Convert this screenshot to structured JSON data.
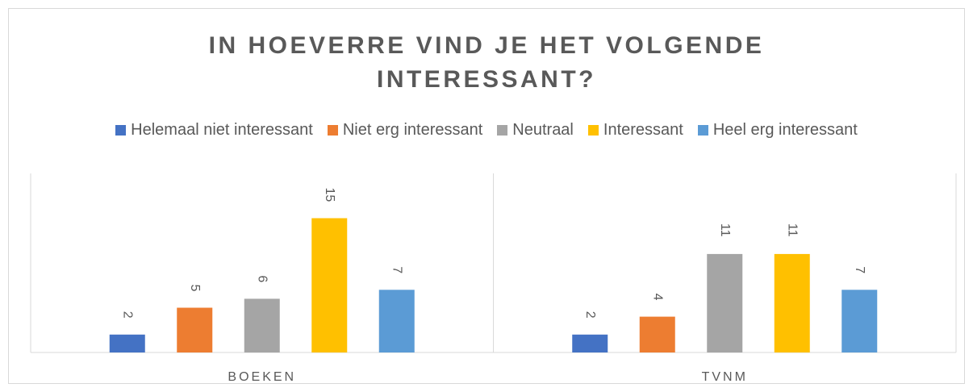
{
  "chart_data": {
    "type": "bar",
    "title": "IN HOEVERRE VIND JE HET VOLGENDE INTERESSANT?",
    "categories": [
      "BOEKEN",
      "TVNM"
    ],
    "series": [
      {
        "name": "Helemaal niet interessant",
        "color": "#4472c4",
        "values": [
          2,
          2
        ]
      },
      {
        "name": "Niet erg interessant",
        "color": "#ed7d31",
        "values": [
          5,
          4
        ]
      },
      {
        "name": "Neutraal",
        "color": "#a5a5a5",
        "values": [
          6,
          11
        ]
      },
      {
        "name": "Interessant",
        "color": "#ffc000",
        "values": [
          15,
          11
        ]
      },
      {
        "name": "Heel erg interessant",
        "color": "#5b9bd5",
        "values": [
          7,
          7
        ]
      }
    ],
    "ylim": [
      0,
      20
    ],
    "legend": "top"
  }
}
